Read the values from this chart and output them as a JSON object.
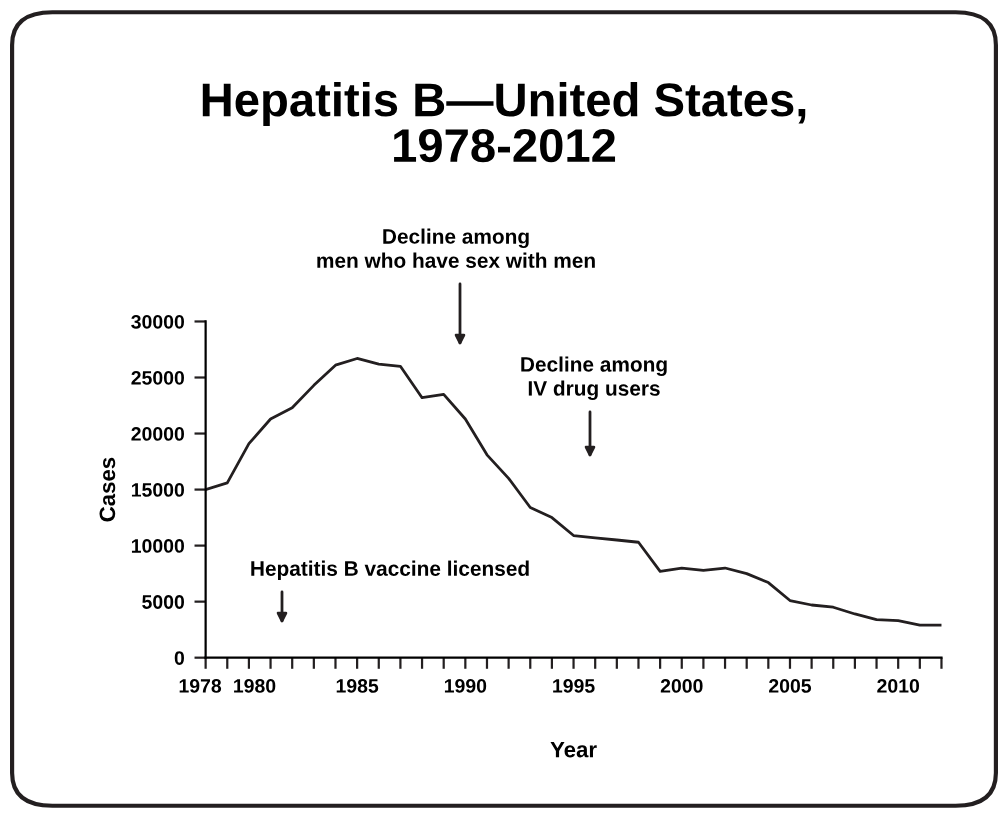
{
  "chart_data": {
    "type": "line",
    "title": "Hepatitis B—United States,\n1978-2012",
    "xlabel": "Year",
    "ylabel": "Cases",
    "x": [
      1978,
      1979,
      1980,
      1981,
      1982,
      1983,
      1984,
      1985,
      1986,
      1987,
      1988,
      1989,
      1990,
      1991,
      1992,
      1993,
      1994,
      1995,
      1996,
      1997,
      1998,
      1999,
      2000,
      2001,
      2002,
      2003,
      2004,
      2005,
      2006,
      2007,
      2008,
      2009,
      2010,
      2011,
      2012
    ],
    "series": [
      {
        "color": "#231f20",
        "values": [
          15000,
          15600,
          19100,
          21300,
          22300,
          24300,
          26100,
          26700,
          26200,
          26000,
          23200,
          23500,
          21300,
          18100,
          16000,
          13400,
          12500,
          10900,
          10700,
          10500,
          10300,
          7700,
          8000,
          7800,
          8000,
          7500,
          6700,
          5100,
          4700,
          4500,
          3900,
          3400,
          3300,
          2900,
          2900
        ]
      }
    ],
    "xlim": [
      1978,
      2012
    ],
    "xticks": [
      1978,
      {
        "value": 1979,
        "label": null
      },
      1980,
      {
        "value": 1981,
        "label": null
      },
      {
        "value": 1982,
        "label": null
      },
      {
        "value": 1983,
        "label": null
      },
      {
        "value": 1984,
        "label": null
      },
      1985,
      {
        "value": 1986,
        "label": null
      },
      {
        "value": 1987,
        "label": null
      },
      {
        "value": 1988,
        "label": null
      },
      {
        "value": 1989,
        "label": null
      },
      1990,
      {
        "value": 1991,
        "label": null
      },
      {
        "value": 1992,
        "label": null
      },
      {
        "value": 1993,
        "label": null
      },
      {
        "value": 1994,
        "label": null
      },
      1995,
      {
        "value": 1996,
        "label": null
      },
      {
        "value": 1997,
        "label": null
      },
      {
        "value": 1998,
        "label": null
      },
      {
        "value": 1999,
        "label": null
      },
      2000,
      {
        "value": 2001,
        "label": null
      },
      {
        "value": 2002,
        "label": null
      },
      {
        "value": 2003,
        "label": null
      },
      {
        "value": 2004,
        "label": null
      },
      2005,
      {
        "value": 2006,
        "label": null
      },
      {
        "value": 2007,
        "label": null
      },
      {
        "value": 2008,
        "label": null
      },
      {
        "value": 2009,
        "label": null
      },
      2010,
      {
        "value": 2011,
        "label": null
      },
      {
        "value": 2012,
        "label": null
      }
    ],
    "ylim": [
      0,
      30000
    ],
    "yticks": [
      0,
      5000,
      10000,
      15000,
      20000,
      25000,
      30000
    ],
    "grid": false,
    "legend": false,
    "marker": "none",
    "line_style": "solid",
    "annotations": [
      "Decline among\nmen who have sex with men",
      "Decline among\nIV drug users",
      "Hepatitis B vaccine licensed"
    ]
  }
}
